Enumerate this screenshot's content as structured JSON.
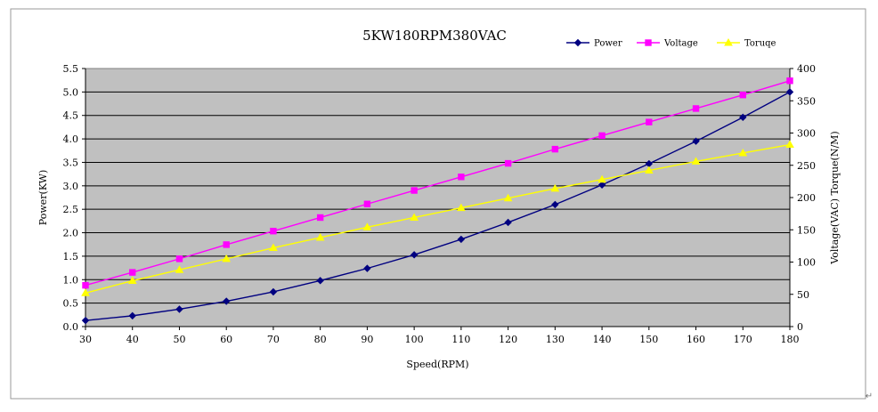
{
  "chart_data": {
    "type": "line",
    "title": "5KW180RPM380VAC",
    "xlabel": "Speed(RPM)",
    "ylabel_left": "Power(KW)",
    "ylabel_right": "Voltage(VAC)  Torque(N/M)",
    "x": [
      30,
      40,
      50,
      60,
      70,
      80,
      90,
      100,
      110,
      120,
      130,
      140,
      150,
      160,
      170,
      180
    ],
    "xlim": [
      30,
      180
    ],
    "ylim_left": [
      0,
      5.5
    ],
    "ylim_right": [
      0,
      400
    ],
    "y_ticks_left": [
      "0.0",
      "0.5",
      "1.0",
      "1.5",
      "2.0",
      "2.5",
      "3.0",
      "3.5",
      "4.0",
      "4.5",
      "5.0",
      "5.5"
    ],
    "y_ticks_right": [
      "0",
      "50",
      "100",
      "150",
      "200",
      "250",
      "300",
      "350",
      "400"
    ],
    "grid": true,
    "legend_position": "top-right",
    "series": [
      {
        "name": "Power",
        "axis": "left",
        "color": "#000080",
        "marker": "diamond",
        "values": [
          0.13,
          0.23,
          0.37,
          0.54,
          0.74,
          0.98,
          1.24,
          1.53,
          1.86,
          2.22,
          2.6,
          3.02,
          3.47,
          3.95,
          4.46,
          5.0
        ]
      },
      {
        "name": "Voltage",
        "axis": "right",
        "color": "#ff00ff",
        "marker": "square",
        "values": [
          64,
          84,
          105,
          127,
          148,
          169,
          190,
          211,
          232,
          253,
          275,
          296,
          317,
          338,
          359,
          381
        ]
      },
      {
        "name": "Toruqe",
        "axis": "right",
        "color": "#ffff00",
        "marker": "triangle",
        "values": [
          52,
          71,
          88,
          105,
          122,
          138,
          154,
          169,
          184,
          199,
          214,
          228,
          242,
          256,
          269,
          282
        ]
      }
    ]
  },
  "corner_mark": "↵"
}
